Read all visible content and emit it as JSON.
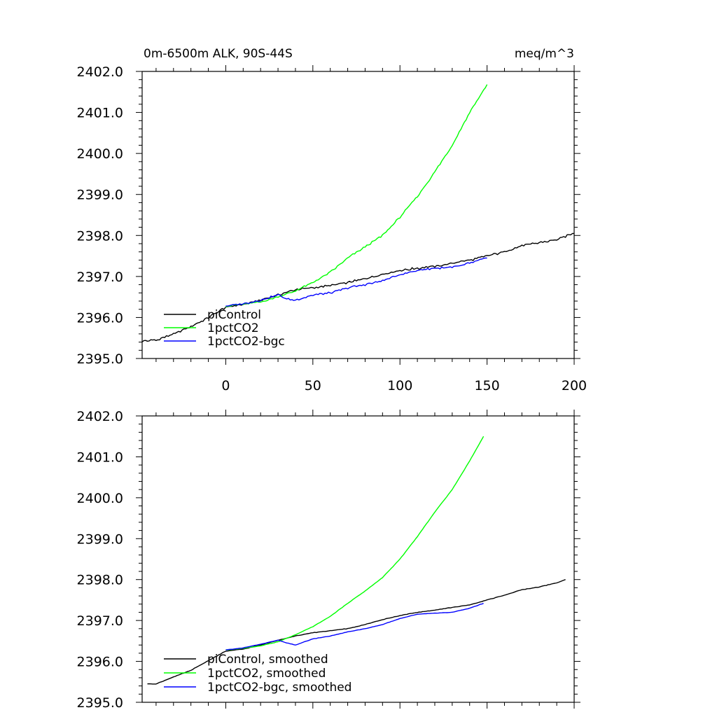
{
  "chart_data": [
    {
      "type": "line",
      "title_left": "0m-6500m ALK, 90S-44S",
      "title_right": "meq/m^3",
      "xlim": [
        -48,
        200
      ],
      "ylim": [
        2395.0,
        2402.0
      ],
      "x_ticks": [
        0,
        50,
        100,
        150,
        200
      ],
      "x_tick_labels": [
        "0",
        "50",
        "100",
        "150",
        "200"
      ],
      "y_ticks": [
        2395.0,
        2396.0,
        2397.0,
        2398.0,
        2399.0,
        2400.0,
        2401.0,
        2402.0
      ],
      "y_tick_labels": [
        "2395.0",
        "2396.0",
        "2397.0",
        "2398.0",
        "2399.0",
        "2400.0",
        "2401.0",
        "2402.0"
      ],
      "legend_position": "bottom-left",
      "series": [
        {
          "name": "piControl",
          "color": "#000000",
          "x": [
            -48,
            -40,
            -30,
            -20,
            -10,
            0,
            10,
            20,
            30,
            40,
            50,
            60,
            70,
            80,
            90,
            100,
            110,
            120,
            130,
            140,
            150,
            160,
            170,
            180,
            190,
            200
          ],
          "y": [
            2395.42,
            2395.45,
            2395.6,
            2395.78,
            2396.0,
            2396.25,
            2396.32,
            2396.42,
            2396.55,
            2396.68,
            2396.72,
            2396.78,
            2396.85,
            2396.95,
            2397.05,
            2397.15,
            2397.2,
            2397.25,
            2397.32,
            2397.4,
            2397.5,
            2397.6,
            2397.75,
            2397.82,
            2397.9,
            2398.05
          ],
          "noise": 0.04
        },
        {
          "name": "1pctCO2",
          "color": "#00ff00",
          "x": [
            0,
            10,
            20,
            30,
            40,
            50,
            60,
            70,
            80,
            90,
            100,
            110,
            120,
            130,
            140,
            150
          ],
          "y": [
            2396.28,
            2396.32,
            2396.38,
            2396.5,
            2396.65,
            2396.85,
            2397.1,
            2397.45,
            2397.72,
            2398.0,
            2398.45,
            2398.95,
            2399.55,
            2400.2,
            2401.0,
            2401.68
          ],
          "noise": 0.035
        },
        {
          "name": "1pctCO2-bgc",
          "color": "#0000ff",
          "x": [
            0,
            10,
            20,
            30,
            35,
            40,
            50,
            60,
            70,
            80,
            90,
            100,
            110,
            120,
            130,
            140,
            150
          ],
          "y": [
            2396.28,
            2396.33,
            2396.42,
            2396.55,
            2396.45,
            2396.42,
            2396.55,
            2396.6,
            2396.72,
            2396.8,
            2396.9,
            2397.05,
            2397.15,
            2397.2,
            2397.22,
            2397.32,
            2397.45
          ],
          "noise": 0.035
        }
      ]
    },
    {
      "type": "line",
      "xlim": [
        -48,
        200
      ],
      "ylim": [
        2395.0,
        2402.0
      ],
      "x_ticks": [
        0,
        50,
        100,
        150,
        200
      ],
      "y_ticks": [
        2395.0,
        2396.0,
        2397.0,
        2398.0,
        2399.0,
        2400.0,
        2401.0,
        2402.0
      ],
      "y_tick_labels": [
        "2395.0",
        "2396.0",
        "2397.0",
        "2398.0",
        "2399.0",
        "2400.0",
        "2401.0",
        "2402.0"
      ],
      "legend_position": "bottom-left",
      "series": [
        {
          "name": "piControl, smoothed",
          "color": "#000000",
          "x": [
            -45,
            -40,
            -30,
            -20,
            -10,
            0,
            10,
            20,
            30,
            40,
            50,
            60,
            70,
            80,
            90,
            100,
            110,
            120,
            130,
            140,
            150,
            160,
            170,
            180,
            190,
            195
          ],
          "y": [
            2395.45,
            2395.45,
            2395.62,
            2395.78,
            2396.02,
            2396.25,
            2396.3,
            2396.4,
            2396.52,
            2396.62,
            2396.7,
            2396.75,
            2396.8,
            2396.9,
            2397.02,
            2397.12,
            2397.2,
            2397.25,
            2397.32,
            2397.38,
            2397.5,
            2397.62,
            2397.75,
            2397.82,
            2397.92,
            2398.0
          ],
          "noise": 0.008
        },
        {
          "name": "1pctCO2, smoothed",
          "color": "#00ff00",
          "x": [
            0,
            10,
            20,
            30,
            40,
            50,
            60,
            70,
            80,
            90,
            100,
            110,
            120,
            130,
            140,
            148
          ],
          "y": [
            2396.28,
            2396.32,
            2396.38,
            2396.48,
            2396.65,
            2396.85,
            2397.1,
            2397.42,
            2397.72,
            2398.05,
            2398.5,
            2399.05,
            2399.65,
            2400.2,
            2400.9,
            2401.5
          ],
          "noise": 0.006
        },
        {
          "name": "1pctCO2-bgc, smoothed",
          "color": "#0000ff",
          "x": [
            0,
            10,
            20,
            30,
            35,
            40,
            50,
            60,
            70,
            80,
            90,
            100,
            110,
            120,
            130,
            140,
            148
          ],
          "y": [
            2396.28,
            2396.33,
            2396.42,
            2396.52,
            2396.45,
            2396.4,
            2396.55,
            2396.62,
            2396.72,
            2396.8,
            2396.9,
            2397.05,
            2397.15,
            2397.18,
            2397.2,
            2397.3,
            2397.42
          ],
          "noise": 0.006
        }
      ]
    }
  ]
}
